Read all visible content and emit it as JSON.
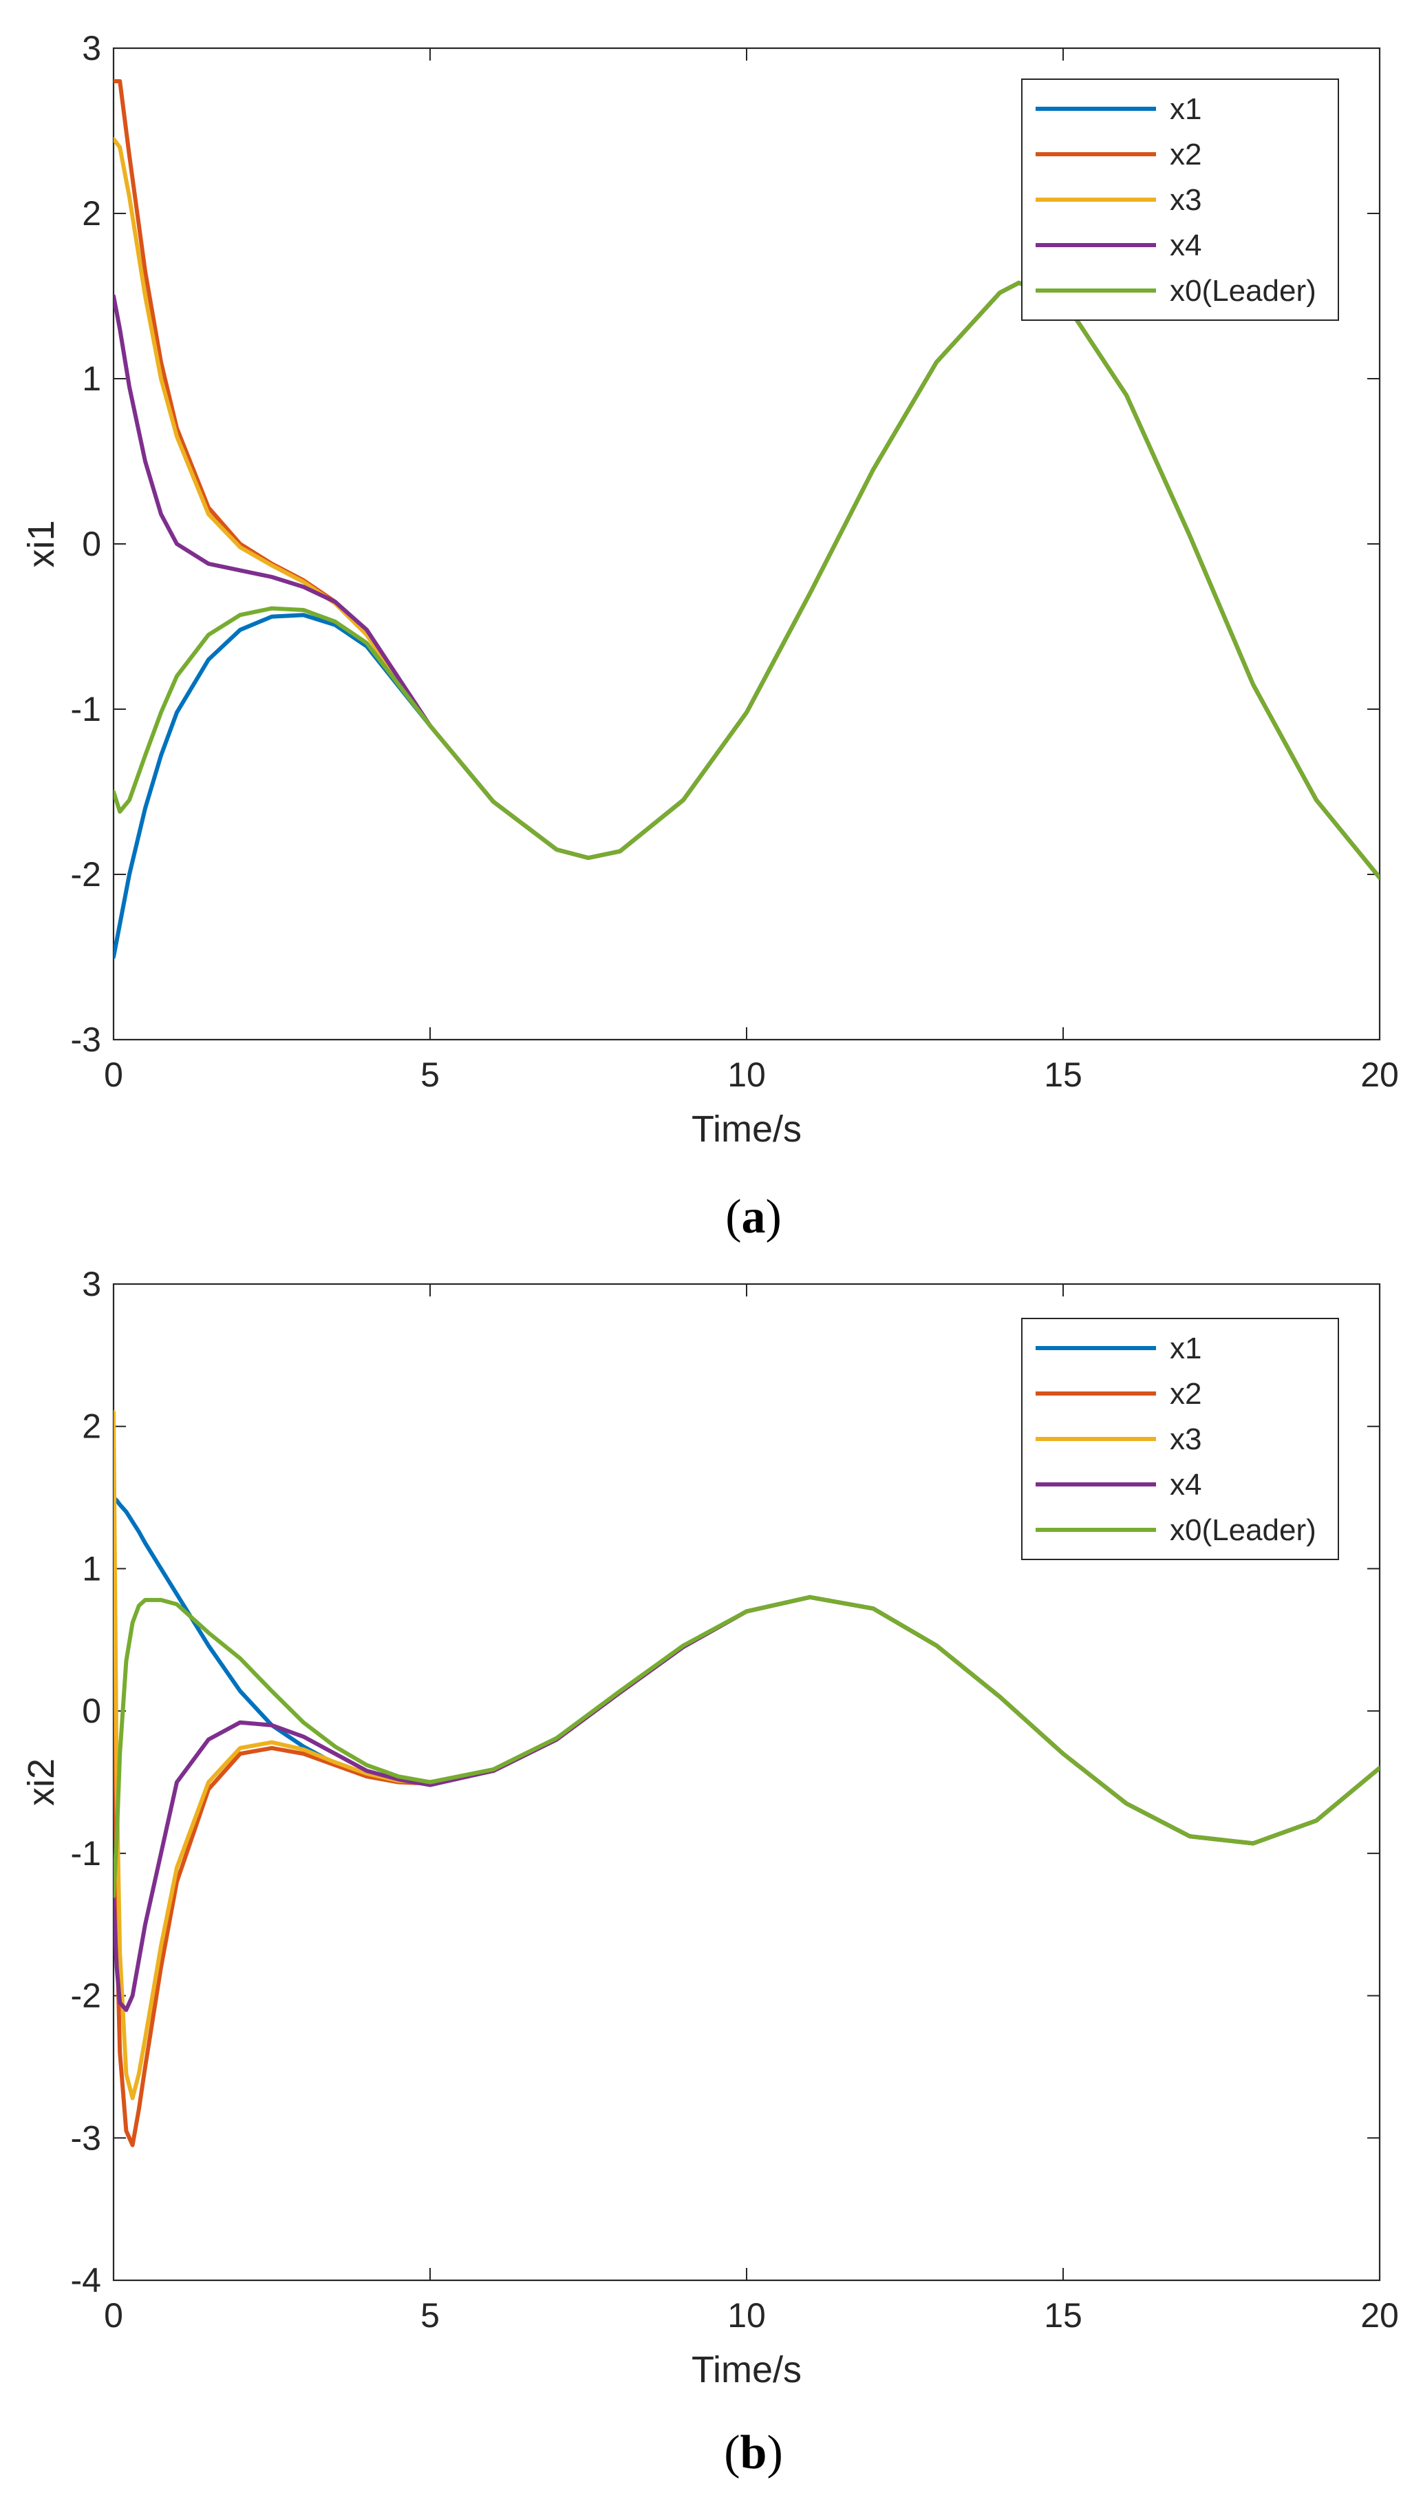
{
  "chart_data": [
    {
      "type": "line",
      "caption_letter": "a",
      "xlabel": "Time/s",
      "ylabel": "xi1",
      "xlim": [
        0,
        20
      ],
      "ylim": [
        -3,
        3
      ],
      "xticks": [
        "0",
        "5",
        "10",
        "15",
        "20"
      ],
      "yticks": [
        "-3",
        "-2",
        "-1",
        "0",
        "1",
        "2",
        "3"
      ],
      "legend_position": "top-right",
      "grid": false,
      "x": [
        0,
        0.1,
        0.25,
        0.5,
        0.75,
        1,
        1.5,
        2,
        2.5,
        3,
        3.5,
        4,
        5,
        6,
        7,
        7.5,
        8,
        9,
        10,
        11,
        12,
        13,
        14,
        14.3,
        15,
        16,
        17,
        18,
        19,
        20
      ],
      "series": [
        {
          "name": "x1",
          "color": "#0072BD",
          "values": [
            -2.5,
            -2.3,
            -2.0,
            -1.6,
            -1.28,
            -1.02,
            -0.7,
            -0.52,
            -0.44,
            -0.43,
            -0.49,
            -0.62,
            -1.1,
            -1.56,
            -1.85,
            -1.9,
            -1.86,
            -1.55,
            -1.02,
            -0.3,
            0.45,
            1.1,
            1.52,
            1.58,
            1.48,
            0.9,
            0.05,
            -0.85,
            -1.55,
            -2.02
          ]
        },
        {
          "name": "x2",
          "color": "#D95319",
          "values": [
            2.8,
            2.8,
            2.35,
            1.65,
            1.1,
            0.7,
            0.22,
            0.0,
            -0.12,
            -0.22,
            -0.35,
            -0.55,
            -1.1,
            -1.56,
            -1.85,
            -1.9,
            -1.86,
            -1.55,
            -1.02,
            -0.3,
            0.45,
            1.1,
            1.52,
            1.58,
            1.48,
            0.9,
            0.05,
            -0.85,
            -1.55,
            -2.02
          ]
        },
        {
          "name": "x3",
          "color": "#EDB120",
          "values": [
            2.45,
            2.4,
            2.1,
            1.5,
            1.0,
            0.65,
            0.18,
            -0.02,
            -0.13,
            -0.23,
            -0.36,
            -0.55,
            -1.1,
            -1.56,
            -1.85,
            -1.9,
            -1.86,
            -1.55,
            -1.02,
            -0.3,
            0.45,
            1.1,
            1.52,
            1.58,
            1.48,
            0.9,
            0.05,
            -0.85,
            -1.55,
            -2.02
          ]
        },
        {
          "name": "x4",
          "color": "#7E2F8E",
          "values": [
            1.5,
            1.3,
            0.95,
            0.5,
            0.18,
            0.0,
            -0.12,
            -0.16,
            -0.2,
            -0.26,
            -0.35,
            -0.52,
            -1.1,
            -1.56,
            -1.85,
            -1.9,
            -1.86,
            -1.55,
            -1.02,
            -0.3,
            0.45,
            1.1,
            1.52,
            1.58,
            1.48,
            0.9,
            0.05,
            -0.85,
            -1.55,
            -2.02
          ]
        },
        {
          "name": "x0(Leader)",
          "color": "#77AC30",
          "values": [
            -1.5,
            -1.62,
            -1.55,
            -1.28,
            -1.02,
            -0.8,
            -0.55,
            -0.43,
            -0.39,
            -0.4,
            -0.47,
            -0.6,
            -1.1,
            -1.56,
            -1.85,
            -1.9,
            -1.86,
            -1.55,
            -1.02,
            -0.3,
            0.45,
            1.1,
            1.52,
            1.58,
            1.48,
            0.9,
            0.05,
            -0.85,
            -1.55,
            -2.02
          ]
        }
      ]
    },
    {
      "type": "line",
      "caption_letter": "b",
      "xlabel": "Time/s",
      "ylabel": "xi2",
      "xlim": [
        0,
        20
      ],
      "ylim": [
        -4,
        3
      ],
      "xticks": [
        "0",
        "5",
        "10",
        "15",
        "20"
      ],
      "yticks": [
        "-4",
        "-3",
        "-2",
        "-1",
        "0",
        "1",
        "2",
        "3"
      ],
      "legend_position": "top-right",
      "grid": false,
      "x": [
        0,
        0.05,
        0.1,
        0.2,
        0.3,
        0.4,
        0.5,
        0.75,
        1,
        1.5,
        2,
        2.5,
        3,
        3.5,
        4,
        4.5,
        5,
        6,
        7,
        8,
        9,
        10,
        11,
        12,
        13,
        14,
        15,
        16,
        17,
        18,
        19,
        20
      ],
      "series": [
        {
          "name": "x1",
          "color": "#0072BD",
          "values": [
            1.5,
            1.48,
            1.45,
            1.4,
            1.33,
            1.26,
            1.18,
            1.0,
            0.82,
            0.46,
            0.14,
            -0.1,
            -0.25,
            -0.37,
            -0.45,
            -0.49,
            -0.5,
            -0.42,
            -0.2,
            0.13,
            0.45,
            0.7,
            0.8,
            0.72,
            0.46,
            0.1,
            -0.3,
            -0.65,
            -0.88,
            -0.93,
            -0.77,
            -0.4
          ]
        },
        {
          "name": "x2",
          "color": "#D95319",
          "values": [
            1.2,
            -1.5,
            -2.4,
            -2.95,
            -3.05,
            -2.8,
            -2.5,
            -1.8,
            -1.2,
            -0.55,
            -0.3,
            -0.26,
            -0.3,
            -0.38,
            -0.46,
            -0.5,
            -0.51,
            -0.42,
            -0.2,
            0.13,
            0.45,
            0.7,
            0.8,
            0.72,
            0.46,
            0.1,
            -0.3,
            -0.65,
            -0.88,
            -0.93,
            -0.77,
            -0.4
          ]
        },
        {
          "name": "x3",
          "color": "#EDB120",
          "values": [
            2.1,
            -0.5,
            -1.7,
            -2.55,
            -2.72,
            -2.55,
            -2.3,
            -1.65,
            -1.1,
            -0.5,
            -0.26,
            -0.22,
            -0.27,
            -0.36,
            -0.44,
            -0.49,
            -0.5,
            -0.42,
            -0.2,
            0.13,
            0.45,
            0.7,
            0.8,
            0.72,
            0.46,
            0.1,
            -0.3,
            -0.65,
            -0.88,
            -0.93,
            -0.77,
            -0.4
          ]
        },
        {
          "name": "x4",
          "color": "#7E2F8E",
          "values": [
            -1.3,
            -1.8,
            -2.05,
            -2.1,
            -2.0,
            -1.75,
            -1.5,
            -1.0,
            -0.5,
            -0.2,
            -0.08,
            -0.1,
            -0.18,
            -0.3,
            -0.42,
            -0.48,
            -0.52,
            -0.42,
            -0.2,
            0.13,
            0.45,
            0.7,
            0.8,
            0.72,
            0.46,
            0.1,
            -0.3,
            -0.65,
            -0.88,
            -0.93,
            -0.77,
            -0.4
          ]
        },
        {
          "name": "x0(Leader)",
          "color": "#77AC30",
          "values": [
            -1.3,
            -0.9,
            -0.3,
            0.35,
            0.62,
            0.74,
            0.78,
            0.78,
            0.75,
            0.55,
            0.37,
            0.14,
            -0.08,
            -0.25,
            -0.38,
            -0.46,
            -0.5,
            -0.41,
            -0.19,
            0.14,
            0.46,
            0.7,
            0.8,
            0.72,
            0.46,
            0.1,
            -0.3,
            -0.65,
            -0.88,
            -0.93,
            -0.77,
            -0.4
          ]
        }
      ]
    }
  ]
}
